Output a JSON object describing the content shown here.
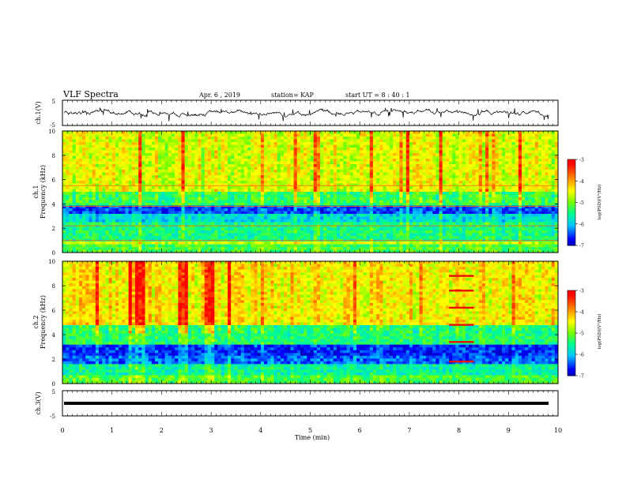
{
  "header": {
    "title": "VLF Spectra",
    "date": "Apr. 6  , 2019",
    "station": "station= KAP",
    "start_time": "start  UT  =   8  : 40 : 1"
  },
  "chart_data": [
    {
      "type": "line",
      "panel": "ch1-waveform",
      "ylabel": "ch.1(V)",
      "ylim": [
        -5,
        5
      ],
      "yticks": [
        "5",
        "-5"
      ],
      "xlim": [
        0,
        10
      ],
      "baseline": 0
    },
    {
      "type": "heatmap",
      "panel": "ch1-spectrogram",
      "ylabel": "ch.1\nFrequency  (kHz)",
      "ylabel_parts": [
        "ch.1",
        "Frequency  (kHz)"
      ],
      "ylim": [
        0,
        10
      ],
      "yticks": [
        "0",
        "2",
        "4",
        "6",
        "8",
        "10"
      ],
      "xlim": [
        0,
        10
      ],
      "colorbar": {
        "ticks": [
          "-3",
          "-4",
          "-5",
          "-6",
          "-7"
        ],
        "label": "log(PSD)(V²/Hz)",
        "range": [
          -7,
          -3
        ]
      },
      "bands_kHz": [
        {
          "from": 0,
          "to": 0.6,
          "level": -5.0
        },
        {
          "from": 0.6,
          "to": 1.0,
          "level": -4.5
        },
        {
          "from": 1.0,
          "to": 2.4,
          "level": -5.3
        },
        {
          "from": 2.4,
          "to": 3.1,
          "level": -5.7
        },
        {
          "from": 3.1,
          "to": 3.8,
          "level": -6.3
        },
        {
          "from": 3.8,
          "to": 5.0,
          "level": -5.1
        },
        {
          "from": 5.0,
          "to": 10.0,
          "level": -4.4
        }
      ],
      "lines_kHz": [
        5.5,
        3.8,
        2.2,
        1.0
      ]
    },
    {
      "type": "heatmap",
      "panel": "ch2-spectrogram",
      "ylabel": "ch.2\nFrequency  (kHz)",
      "ylabel_parts": [
        "ch.2",
        "Frequency  (kHz)"
      ],
      "ylim": [
        0,
        10
      ],
      "yticks": [
        "0",
        "2",
        "4",
        "6",
        "8",
        "10"
      ],
      "xlim": [
        0,
        10
      ],
      "colorbar": {
        "ticks": [
          "-3",
          "-4",
          "-5",
          "-6",
          "-7"
        ],
        "label": "log(PSD)(V²/Hz)",
        "range": [
          -7,
          -3
        ]
      },
      "bands_kHz": [
        {
          "from": 0,
          "to": 0.6,
          "level": -5.0
        },
        {
          "from": 0.6,
          "to": 1.6,
          "level": -5.4
        },
        {
          "from": 1.6,
          "to": 2.2,
          "level": -6.2
        },
        {
          "from": 2.2,
          "to": 3.2,
          "level": -6.4
        },
        {
          "from": 3.2,
          "to": 4.8,
          "level": -5.2
        },
        {
          "from": 4.8,
          "to": 10.0,
          "level": -4.2
        }
      ],
      "lines_kHz": [
        1.8,
        3.4,
        4.8,
        6.2,
        7.6,
        8.8
      ],
      "line_time_range_min": [
        7.8,
        8.3
      ]
    },
    {
      "type": "line",
      "panel": "ch3-waveform",
      "ylabel": "ch.3(V)",
      "ylim": [
        -5,
        5
      ],
      "yticks": [
        "5",
        "-5"
      ],
      "xlim": [
        0,
        10
      ],
      "constant_value": 0
    }
  ],
  "xaxis": {
    "label": "Time  (min)",
    "ticks": [
      "0",
      "1",
      "2",
      "3",
      "4",
      "5",
      "6",
      "7",
      "8",
      "9",
      "10"
    ],
    "range": [
      0,
      10
    ]
  },
  "colors": {
    "scale": [
      "#00007f",
      "#0000ff",
      "#00c8ff",
      "#00ff80",
      "#80ff00",
      "#ffff00",
      "#ff8000",
      "#ff0000",
      "#ffffff"
    ]
  }
}
